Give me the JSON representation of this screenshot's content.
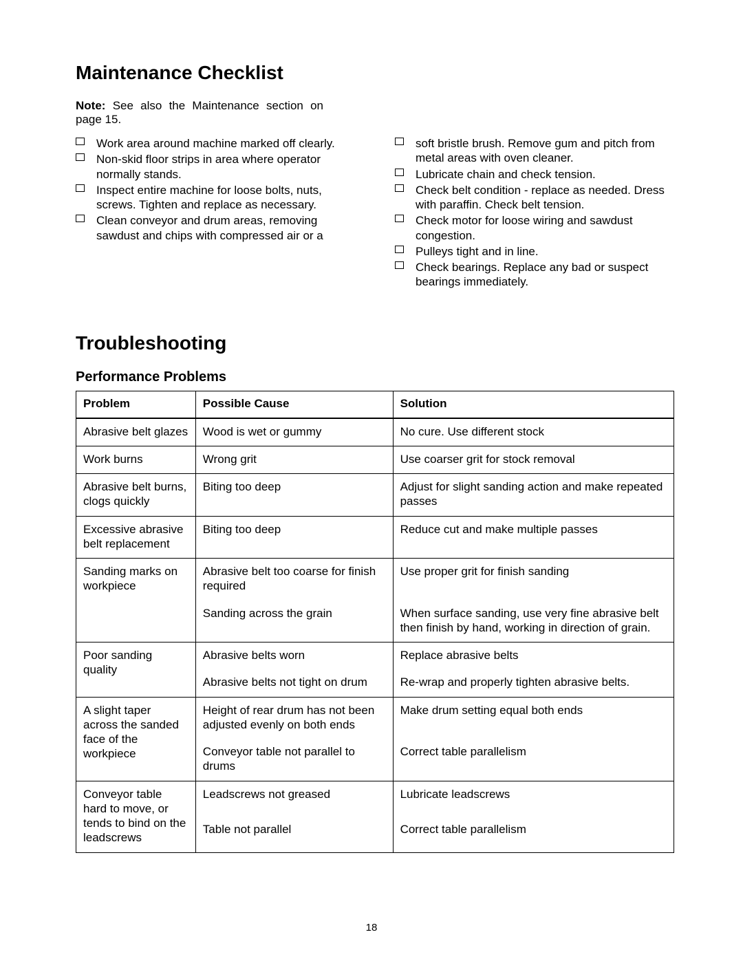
{
  "page_number": "18",
  "section1": {
    "title": "Maintenance Checklist",
    "note_label": "Note:",
    "note_text": "See also the Maintenance section on page 15.",
    "left_items": [
      "Work area around machine marked off clearly.",
      "Non-skid floor strips in area where operator normally stands.",
      "Inspect entire machine for loose bolts, nuts, screws.  Tighten and replace as necessary.",
      "Clean conveyor and drum areas, removing sawdust and chips with compressed air or a"
    ],
    "right_items": [
      "soft bristle brush. Remove gum and pitch from metal areas with oven cleaner.",
      "Lubricate chain and check tension.",
      "Check belt condition - replace as needed. Dress with paraffin. Check belt tension.",
      "Check motor for loose wiring and sawdust congestion.",
      "Pulleys tight and in line.",
      "Check bearings. Replace any bad or suspect bearings immediately."
    ]
  },
  "section2": {
    "title": "Troubleshooting",
    "subtitle": "Performance Problems",
    "headers": {
      "problem": "Problem",
      "cause": "Possible Cause",
      "solution": "Solution"
    },
    "col_widths": {
      "problem": "20%",
      "cause": "33%",
      "solution": "47%"
    },
    "groups": [
      {
        "rows": [
          {
            "problem": "Abrasive belt glazes",
            "cause": "Wood is wet or gummy",
            "solution": "No cure. Use different stock"
          }
        ]
      },
      {
        "rows": [
          {
            "problem": "Work burns",
            "cause": "Wrong grit",
            "solution": "Use coarser grit for stock removal"
          }
        ]
      },
      {
        "rows": [
          {
            "problem": "Abrasive belt burns, clogs quickly",
            "cause": "Biting too deep",
            "solution": "Adjust for slight sanding action and make repeated passes"
          }
        ]
      },
      {
        "rows": [
          {
            "problem": "Excessive abrasive belt replacement",
            "cause": "Biting too deep",
            "solution": "Reduce cut and make multiple passes"
          }
        ]
      },
      {
        "rows": [
          {
            "problem": "Sanding marks on workpiece",
            "cause": "Abrasive belt too coarse for finish required",
            "solution": "Use proper grit for finish sanding"
          },
          {
            "problem": "",
            "cause": "Sanding across the grain",
            "solution": "When surface sanding, use very fine abrasive belt then finish by hand, working in direction of grain."
          }
        ]
      },
      {
        "rows": [
          {
            "problem": "Poor sanding quality",
            "cause": "Abrasive belts worn",
            "solution": "Replace abrasive belts"
          },
          {
            "problem": "",
            "cause": "Abrasive belts not tight on drum",
            "solution": "Re-wrap and properly tighten abrasive belts."
          }
        ]
      },
      {
        "rows": [
          {
            "problem": "A slight taper across the sanded face of the workpiece",
            "cause": "Height of rear drum has not been adjusted evenly on both ends",
            "solution": "Make drum setting equal both ends"
          },
          {
            "problem": "",
            "cause": "Conveyor table not parallel to drums",
            "solution": "Correct table parallelism"
          }
        ]
      },
      {
        "rows": [
          {
            "problem": "Conveyor table hard to move, or tends to bind on the leadscrews",
            "cause": "Leadscrews not greased",
            "solution": "Lubricate leadscrews"
          },
          {
            "problem": "",
            "cause": "Table not parallel",
            "solution": "Correct table parallelism"
          }
        ]
      }
    ]
  }
}
